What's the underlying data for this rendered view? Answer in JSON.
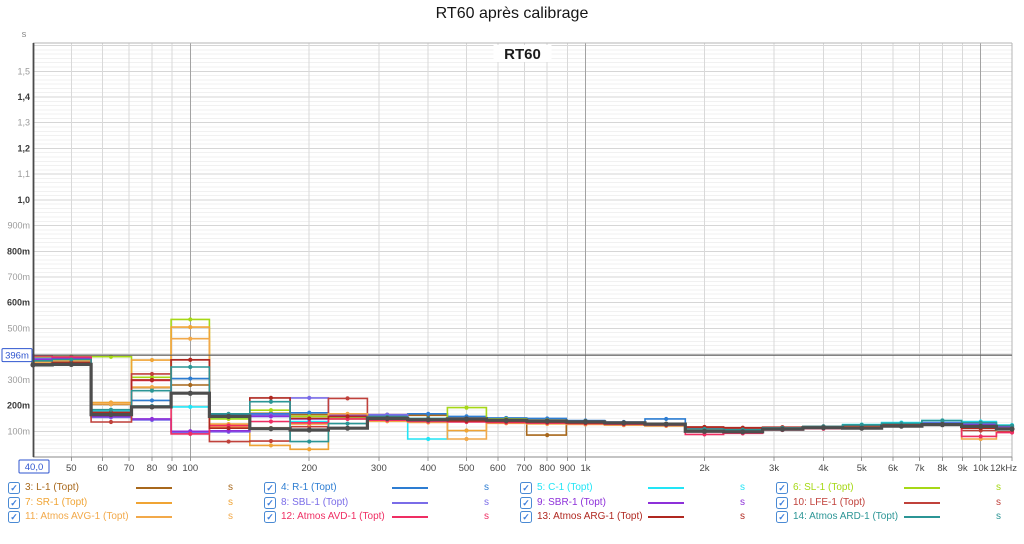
{
  "title": "RT60 après calibrage",
  "chart": {
    "inner_title": "RT60",
    "y_unit": "s",
    "cursor": {
      "y_label": "396m",
      "y_value_ms": 396,
      "x_label": "40,0",
      "x_value_hz": 40
    },
    "y_ticks": [
      {
        "ms": 100,
        "label": "100m"
      },
      {
        "ms": 200,
        "label": "200m"
      },
      {
        "ms": 300,
        "label": "300m"
      },
      {
        "ms": 500,
        "label": "500m"
      },
      {
        "ms": 600,
        "label": "600m"
      },
      {
        "ms": 700,
        "label": "700m"
      },
      {
        "ms": 800,
        "label": "800m"
      },
      {
        "ms": 900,
        "label": "900m"
      },
      {
        "ms": 1000,
        "label": "1,0"
      },
      {
        "ms": 1100,
        "label": "1,1"
      },
      {
        "ms": 1200,
        "label": "1,2"
      },
      {
        "ms": 1300,
        "label": "1,3"
      },
      {
        "ms": 1400,
        "label": "1,4"
      },
      {
        "ms": 1500,
        "label": "1,5"
      }
    ],
    "x_ticks": [
      {
        "hz": 50,
        "label": "50"
      },
      {
        "hz": 60,
        "label": "60"
      },
      {
        "hz": 70,
        "label": "70"
      },
      {
        "hz": 80,
        "label": "80"
      },
      {
        "hz": 90,
        "label": "90"
      },
      {
        "hz": 100,
        "label": "100"
      },
      {
        "hz": 200,
        "label": "200"
      },
      {
        "hz": 300,
        "label": "300"
      },
      {
        "hz": 400,
        "label": "400"
      },
      {
        "hz": 500,
        "label": "500"
      },
      {
        "hz": 600,
        "label": "600"
      },
      {
        "hz": 700,
        "label": "700"
      },
      {
        "hz": 800,
        "label": "800"
      },
      {
        "hz": 900,
        "label": "900"
      },
      {
        "hz": 1000,
        "label": "1k"
      },
      {
        "hz": 2000,
        "label": "2k"
      },
      {
        "hz": 3000,
        "label": "3k"
      },
      {
        "hz": 4000,
        "label": "4k"
      },
      {
        "hz": 5000,
        "label": "5k"
      },
      {
        "hz": 6000,
        "label": "6k"
      },
      {
        "hz": 7000,
        "label": "7k"
      },
      {
        "hz": 8000,
        "label": "8k"
      },
      {
        "hz": 9000,
        "label": "9k"
      },
      {
        "hz": 10000,
        "label": "10k"
      },
      {
        "hz": 12000,
        "label": "12kHz"
      }
    ]
  },
  "chart_data": {
    "type": "line",
    "subtype": "third-octave-step",
    "x_scale": "log",
    "x_range_hz": [
      40,
      12000
    ],
    "y_range_s": [
      0,
      1.61
    ],
    "grid": "on",
    "bands_hz": [
      40,
      50,
      63,
      80,
      100,
      125,
      160,
      200,
      250,
      315,
      400,
      500,
      630,
      800,
      1000,
      1250,
      1600,
      2000,
      2500,
      3150,
      4000,
      5000,
      6300,
      8000,
      10000,
      12000
    ],
    "values_unit": "ms",
    "series": [
      {
        "name": "3: L-1 (Topt)",
        "color": "#a8681c",
        "values_ms": [
          370,
          372,
          205,
          270,
          280,
          155,
          170,
          165,
          160,
          158,
          162,
          150,
          148,
          85,
          140,
          130,
          126,
          108,
          104,
          110,
          114,
          118,
          123,
          127,
          120,
          113
        ]
      },
      {
        "name": "4: R-1 (Topt)",
        "color": "#2d7dd2",
        "values_ms": [
          380,
          383,
          162,
          220,
          305,
          162,
          168,
          172,
          158,
          162,
          168,
          158,
          152,
          150,
          142,
          136,
          148,
          112,
          108,
          113,
          117,
          121,
          126,
          134,
          130,
          120
        ]
      },
      {
        "name": "5: C-1 (Topt)",
        "color": "#22e5f6",
        "values_ms": [
          363,
          368,
          178,
          198,
          195,
          152,
          158,
          138,
          148,
          143,
          70,
          148,
          143,
          138,
          133,
          128,
          124,
          106,
          102,
          110,
          118,
          126,
          134,
          142,
          138,
          124
        ]
      },
      {
        "name": "6: SL-1 (Topt)",
        "color": "#a6d816",
        "values_ms": [
          390,
          391,
          390,
          310,
          535,
          148,
          182,
          158,
          152,
          148,
          143,
          192,
          148,
          143,
          139,
          134,
          129,
          110,
          106,
          112,
          116,
          120,
          126,
          130,
          126,
          119
        ]
      },
      {
        "name": "7: SR-1 (Topt)",
        "color": "#f0a434",
        "values_ms": [
          374,
          378,
          212,
          377,
          505,
          128,
          45,
          30,
          148,
          165,
          138,
          103,
          133,
          129,
          127,
          124,
          121,
          107,
          103,
          109,
          113,
          118,
          124,
          129,
          124,
          117
        ]
      },
      {
        "name": "8: SBL-1 (Topt)",
        "color": "#7a6ce8",
        "values_ms": [
          384,
          388,
          154,
          144,
          95,
          98,
          162,
          230,
          158,
          165,
          148,
          143,
          139,
          137,
          134,
          131,
          127,
          111,
          107,
          112,
          116,
          120,
          126,
          131,
          127,
          119
        ]
      },
      {
        "name": "9: SBR-1 (Topt)",
        "color": "#8d30d9",
        "values_ms": [
          379,
          384,
          158,
          148,
          100,
          102,
          158,
          148,
          165,
          148,
          143,
          138,
          136,
          133,
          130,
          128,
          125,
          108,
          105,
          111,
          115,
          119,
          125,
          129,
          125,
          117
        ]
      },
      {
        "name": "10: LFE-1 (Topt)",
        "color": "#c0413b",
        "values_ms": [
          358,
          363,
          136,
          323,
          378,
          60,
          62,
          118,
          228,
          148,
          143,
          138,
          133,
          130,
          128,
          126,
          123,
          115,
          112,
          115,
          118,
          121,
          125,
          128,
          103,
          98
        ]
      },
      {
        "name": "11: Atmos AVG-1 (Topt)",
        "color": "#f2a94a",
        "values_ms": [
          368,
          374,
          206,
          272,
          460,
          118,
          113,
          128,
          168,
          139,
          134,
          70,
          131,
          129,
          127,
          125,
          123,
          106,
          103,
          109,
          113,
          117,
          123,
          128,
          70,
          112
        ]
      },
      {
        "name": "12: Atmos AVD-1 (Topt)",
        "color": "#ef2e63",
        "values_ms": [
          393,
          389,
          168,
          298,
          90,
          122,
          138,
          133,
          148,
          143,
          138,
          136,
          134,
          132,
          130,
          127,
          124,
          88,
          92,
          105,
          110,
          114,
          120,
          126,
          80,
          95
        ]
      },
      {
        "name": "13: Atmos ARG-1 (Topt)",
        "color": "#b02820",
        "values_ms": [
          362,
          368,
          174,
          300,
          378,
          112,
          230,
          150,
          158,
          148,
          144,
          140,
          138,
          135,
          132,
          129,
          126,
          117,
          114,
          116,
          119,
          122,
          126,
          129,
          112,
          106
        ]
      },
      {
        "name": "14: Atmos ARD-1 (Topt)",
        "color": "#2b9595",
        "values_ms": [
          374,
          379,
          184,
          258,
          350,
          168,
          215,
          60,
          130,
          156,
          150,
          146,
          142,
          139,
          136,
          132,
          128,
          109,
          106,
          113,
          119,
          125,
          131,
          142,
          134,
          122
        ]
      },
      {
        "name": "",
        "emphasis": true,
        "color": "#4d4d4d",
        "values_ms": [
          358,
          360,
          165,
          195,
          248,
          158,
          110,
          105,
          112,
          150,
          145,
          148,
          143,
          140,
          137,
          133,
          128,
          100,
          98,
          108,
          114,
          112,
          120,
          126,
          119,
          109
        ]
      }
    ]
  },
  "legend": {
    "unit": "s",
    "items": [
      {
        "label": "3: L-1 (Topt)",
        "color": "#a8681c",
        "checked": true
      },
      {
        "label": "4: R-1 (Topt)",
        "color": "#2d7dd2",
        "checked": true
      },
      {
        "label": "5: C-1 (Topt)",
        "color": "#22e5f6",
        "checked": true
      },
      {
        "label": "6: SL-1 (Topt)",
        "color": "#a6d816",
        "checked": true
      },
      {
        "label": "7: SR-1 (Topt)",
        "color": "#f0a434",
        "checked": true
      },
      {
        "label": "8: SBL-1 (Topt)",
        "color": "#7a6ce8",
        "checked": true
      },
      {
        "label": "9: SBR-1 (Topt)",
        "color": "#8d30d9",
        "checked": true
      },
      {
        "label": "10: LFE-1 (Topt)",
        "color": "#c0413b",
        "checked": true
      },
      {
        "label": "11: Atmos AVG-1 (Topt)",
        "color": "#f2a94a",
        "checked": true
      },
      {
        "label": "12: Atmos AVD-1 (Topt)",
        "color": "#ef2e63",
        "checked": true
      },
      {
        "label": "13: Atmos ARG-1 (Topt)",
        "color": "#b02820",
        "checked": true
      },
      {
        "label": "14: Atmos ARD-1 (Topt)",
        "color": "#2b9595",
        "checked": true
      }
    ],
    "check_color": "#3d7edb"
  }
}
